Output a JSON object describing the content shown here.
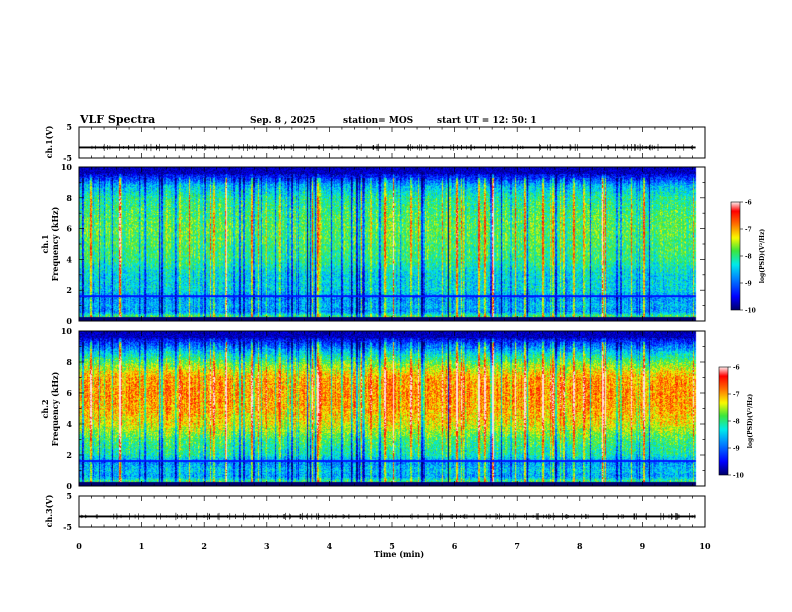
{
  "chart_data": {
    "type": "heatmap",
    "title": "VLF Spectra",
    "header": {
      "date": "Sep. 8 , 2025",
      "station": "station= MOS",
      "start_ut": "start UT = 12: 50: 1"
    },
    "time_axis": {
      "label": "Time (min)",
      "range": [
        0,
        10
      ],
      "ticks": [
        "0",
        "1",
        "2",
        "3",
        "4",
        "5",
        "6",
        "7",
        "8",
        "9",
        "10"
      ],
      "data_end_min": 9.85
    },
    "panels": [
      {
        "name": "ch.1(V)",
        "kind": "waveform",
        "ylabel": "ch.1(V)",
        "ylim": [
          -5,
          5
        ],
        "yticks": [
          "5",
          "-5"
        ],
        "baseline_v": -1.6
      },
      {
        "name": "ch.1 spectrogram",
        "kind": "spectrogram",
        "ylabel_line1": "ch.1",
        "ylabel_line2": "Frequency (kHz)",
        "ylim": [
          0,
          10
        ],
        "yticks": [
          "0",
          "2",
          "4",
          "6",
          "8",
          "10"
        ],
        "colorbar": {
          "label": "log(PSD)(V²/Hz)",
          "range": [
            -10,
            -6
          ],
          "ticks": [
            "-6",
            "-7",
            "-8",
            "-9",
            "-10"
          ]
        },
        "profile": [
          {
            "f": 0.1,
            "v": -9.7
          },
          {
            "f": 0.3,
            "v": -7.8
          },
          {
            "f": 0.6,
            "v": -8.8
          },
          {
            "f": 1.0,
            "v": -8.6
          },
          {
            "f": 1.5,
            "v": -8.8
          },
          {
            "f": 2.0,
            "v": -8.4
          },
          {
            "f": 3.0,
            "v": -8.4
          },
          {
            "f": 4.0,
            "v": -8.0
          },
          {
            "f": 5.0,
            "v": -7.9
          },
          {
            "f": 6.0,
            "v": -7.8
          },
          {
            "f": 7.0,
            "v": -7.9
          },
          {
            "f": 8.0,
            "v": -8.1
          },
          {
            "f": 8.8,
            "v": -8.6
          },
          {
            "f": 9.2,
            "v": -9.2
          },
          {
            "f": 9.7,
            "v": -9.8
          },
          {
            "f": 10.0,
            "v": -10.0
          }
        ]
      },
      {
        "name": "ch.2 spectrogram",
        "kind": "spectrogram",
        "ylabel_line1": "ch.2",
        "ylabel_line2": "Frequency (kHz)",
        "ylim": [
          0,
          10
        ],
        "yticks": [
          "0",
          "2",
          "4",
          "6",
          "8",
          "10"
        ],
        "colorbar": {
          "label": "log(PSD)(V²/Hz)",
          "range": [
            -10,
            -6
          ],
          "ticks": [
            "-6",
            "-7",
            "-8",
            "-9",
            "-10"
          ]
        },
        "profile": [
          {
            "f": 0.1,
            "v": -9.6
          },
          {
            "f": 0.3,
            "v": -7.9
          },
          {
            "f": 0.6,
            "v": -8.7
          },
          {
            "f": 1.0,
            "v": -8.5
          },
          {
            "f": 1.5,
            "v": -8.8
          },
          {
            "f": 2.0,
            "v": -8.2
          },
          {
            "f": 3.0,
            "v": -7.9
          },
          {
            "f": 4.0,
            "v": -7.3
          },
          {
            "f": 5.0,
            "v": -7.0
          },
          {
            "f": 6.0,
            "v": -6.9
          },
          {
            "f": 7.0,
            "v": -7.0
          },
          {
            "f": 7.8,
            "v": -7.6
          },
          {
            "f": 8.5,
            "v": -8.3
          },
          {
            "f": 9.2,
            "v": -9.2
          },
          {
            "f": 9.7,
            "v": -9.8
          },
          {
            "f": 10.0,
            "v": -10.0
          }
        ]
      },
      {
        "name": "ch.3(V)",
        "kind": "waveform",
        "ylabel": "ch.3(V)",
        "ylim": [
          -5,
          5
        ],
        "yticks": [
          "5",
          "-5"
        ],
        "baseline_v": -1.6
      }
    ]
  }
}
